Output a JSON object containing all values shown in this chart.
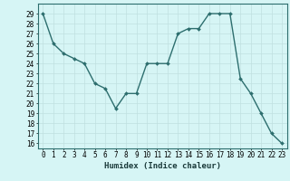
{
  "x": [
    0,
    1,
    2,
    3,
    4,
    5,
    6,
    7,
    8,
    9,
    10,
    11,
    12,
    13,
    14,
    15,
    16,
    17,
    18,
    19,
    20,
    21,
    22,
    23
  ],
  "y": [
    29,
    26,
    25,
    24.5,
    24,
    22,
    21.5,
    19.5,
    21,
    21,
    24,
    24,
    24,
    27,
    27.5,
    27.5,
    29,
    29,
    29,
    22.5,
    21,
    19,
    17,
    16
  ],
  "line_color": "#2d6e6e",
  "marker_color": "#2d6e6e",
  "bg_color": "#d6f5f5",
  "grid_color": "#c0e0e0",
  "title": "",
  "xlabel": "Humidex (Indice chaleur)",
  "ylabel": "",
  "xlim": [
    -0.5,
    23.5
  ],
  "ylim": [
    15.5,
    30.0
  ],
  "yticks": [
    16,
    17,
    18,
    19,
    20,
    21,
    22,
    23,
    24,
    25,
    26,
    27,
    28,
    29
  ],
  "xticks": [
    0,
    1,
    2,
    3,
    4,
    5,
    6,
    7,
    8,
    9,
    10,
    11,
    12,
    13,
    14,
    15,
    16,
    17,
    18,
    19,
    20,
    21,
    22,
    23
  ],
  "tick_fontsize": 5.5,
  "xlabel_fontsize": 6.5,
  "linewidth": 1.0,
  "markersize": 2.0
}
